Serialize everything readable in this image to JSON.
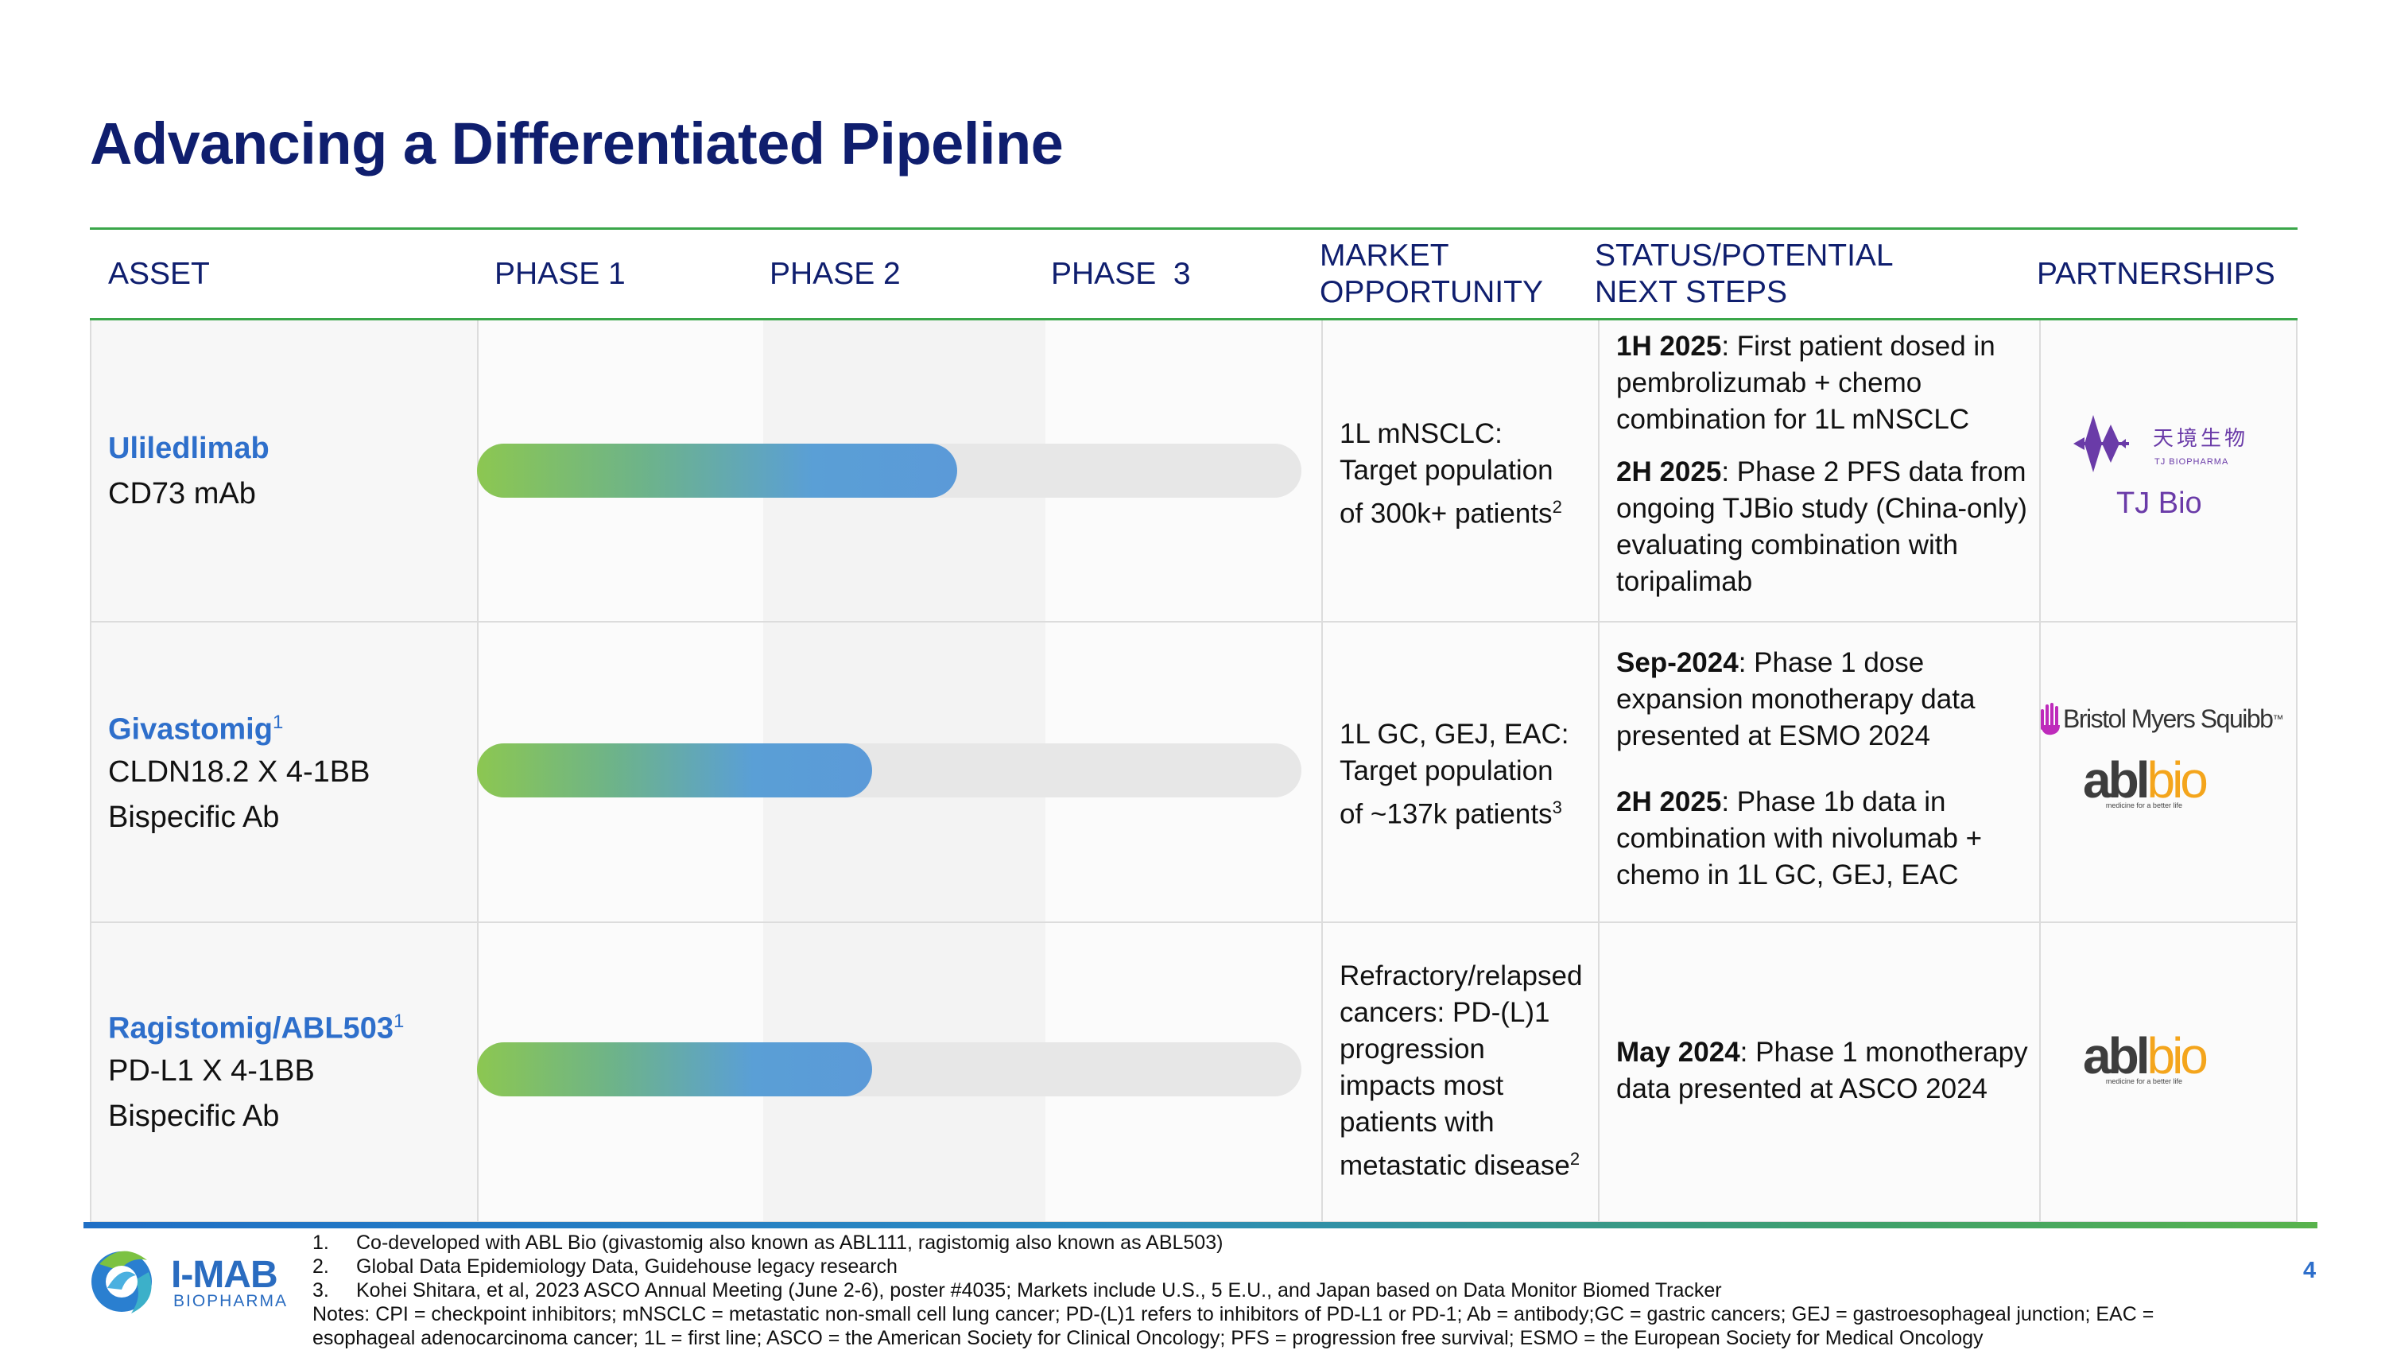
{
  "title": "Advancing a Differentiated Pipeline",
  "headers": {
    "asset": "ASSET",
    "phase1": "PHASE 1",
    "phase2": "PHASE 2",
    "phase3": "PHASE  3",
    "market_l1": "MARKET",
    "market_l2": "OPPORTUNITY",
    "status_l1": "STATUS/POTENTIAL",
    "status_l2": "NEXT STEPS",
    "partnerships": "PARTNERSHIPS"
  },
  "rows": [
    {
      "name": "Uliledlimab",
      "name_sup": "",
      "desc1": "CD73 mAb",
      "desc2": "",
      "progress_phase": 1.7,
      "market_lines": [
        "1L mNSCLC:",
        "Target population",
        "of 300k+ patients"
      ],
      "market_sup": "2",
      "status_blocks": [
        {
          "bold": "1H 2025",
          "lines": [
            ": First patient dosed in",
            "pembrolizumab + chemo",
            "combination for 1L mNSCLC"
          ]
        },
        {
          "bold": "2H 2025",
          "lines": [
            ": Phase 2 PFS data from",
            "ongoing TJBio study (China-only)",
            "evaluating combination with",
            "toripalimab"
          ]
        }
      ],
      "partner": "TJ Bio",
      "partner_logo_cn": "天境生物",
      "partner_logo_en": "TJ BIOPHARMA"
    },
    {
      "name": "Givastomig",
      "name_sup": "1",
      "desc1": "CLDN18.2 X 4-1BB",
      "desc2": "Bispecific Ab",
      "progress_phase": 1.4,
      "market_lines": [
        "1L GC, GEJ, EAC:",
        "Target population",
        "of ~137k patients"
      ],
      "market_sup": "3",
      "status_blocks": [
        {
          "bold": "Sep-2024",
          "lines": [
            ": Phase 1 dose",
            "expansion monotherapy data",
            "presented at ESMO 2024"
          ]
        },
        {
          "bold": "2H 2025",
          "lines": [
            ": Phase 1b data in",
            "combination with nivolumab +",
            "chemo in 1L GC, GEJ, EAC"
          ]
        }
      ],
      "partner_bms": "Bristol Myers Squibb",
      "partner_bms_tm": "™"
    },
    {
      "name": "Ragistomig/ABL503",
      "name_sup": "1",
      "desc1": "PD-L1 X 4-1BB",
      "desc2": "Bispecific Ab",
      "progress_phase": 1.4,
      "market_lines": [
        "Refractory/relapsed",
        "cancers: PD-(L)1",
        "progression",
        "impacts most",
        "patients with",
        "metastatic disease"
      ],
      "market_sup": "2",
      "status_blocks": [
        {
          "bold": "May 2024",
          "lines": [
            ": Phase 1 monotherapy",
            "data presented at ASCO 2024"
          ]
        }
      ]
    }
  ],
  "abl_logo": {
    "a": "abl",
    "b": "bio",
    "tag": "medicine for a better life"
  },
  "footnotes": [
    {
      "num": "1.",
      "text": "Co-developed with ABL Bio (givastomig also known as ABL111, ragistomig also known as ABL503)"
    },
    {
      "num": "2.",
      "text": "Global Data Epidemiology Data, Guidehouse legacy research"
    },
    {
      "num": "3.",
      "text": "Kohei Shitara, et al, 2023 ASCO Annual Meeting (June 2-6), poster #4035; Markets include U.S., 5 E.U., and Japan based on Data Monitor Biomed Tracker"
    }
  ],
  "notes_l1": "Notes: CPI = checkpoint inhibitors; mNSCLC = metastatic non-small cell lung cancer; PD-(L)1 refers to inhibitors of PD-L1 or PD-1; Ab = antibody;GC = gastric cancers; GEJ = gastroesophageal junction; EAC =",
  "notes_l2": "esophageal adenocarcinoma cancer; 1L = first line; ASCO = the American Society for Clinical Oncology; PFS = progression free survival; ESMO = the European Society for Medical Oncology",
  "page_number": "4",
  "company": {
    "name": "I-MAB",
    "sub": "BIOPHARMA"
  },
  "colors": {
    "title": "#0f1e6e",
    "accent_blue": "#2e6fcb",
    "green_rule": "#3aa64a",
    "bar_start": "#8cc751",
    "bar_end": "#5b9ad8",
    "track": "#e7e7e7"
  }
}
